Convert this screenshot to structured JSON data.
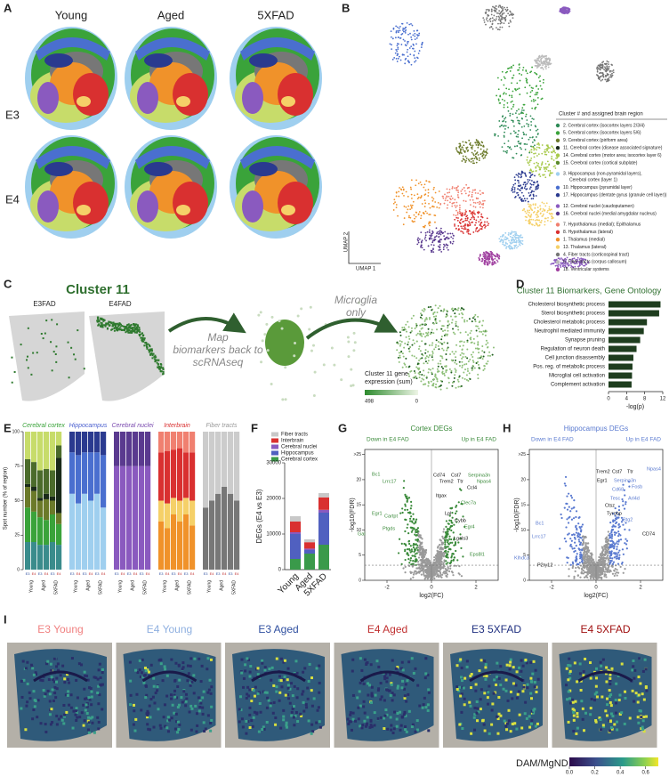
{
  "panel_a": {
    "label": "A",
    "columns": [
      "Young",
      "Aged",
      "5XFAD"
    ],
    "rows": [
      "E3",
      "E4"
    ]
  },
  "panel_b": {
    "label": "B",
    "legend_title": "Cluster # and assigned brain region",
    "x_axis": "UMAP 1",
    "y_axis": "UMAP 2",
    "clusters": [
      {
        "name": "2.  Cerebral cortex (isocortex layers 2/3/4)",
        "color": "#2e8b57"
      },
      {
        "name": "5.  Cerebral cortex (isocortex layers 5/6)",
        "color": "#3aa33a"
      },
      {
        "name": "9.  Cerebral cortex (piriform area)",
        "color": "#6b7a2a"
      },
      {
        "name": "11. Cerebral cortex (disease associated signature)",
        "color": "#1a2a1a"
      },
      {
        "name": "14. Cerebral cortex (motor area; isocortex layer 6)",
        "color": "#a7c94a"
      },
      {
        "name": "15. Cerebral cortex (cortical subplate)",
        "color": "#5c8a2e"
      },
      {
        "name": "3.  Hippocampus (non-pyramidal layers),",
        "color": "#9fcfef"
      },
      {
        "name": "10. Hippocampus (pyramidal layer)",
        "color": "#4a6fcf"
      },
      {
        "name": "17. Hippocampus (dentate gyrus (granule cell layer))",
        "color": "#2a3a8f"
      },
      {
        "name": "12. Cerebral nuclei (caudoputamen)",
        "color": "#8a5abf"
      },
      {
        "name": "16. Cerebral nuclei (medial amygdalar nucleus)",
        "color": "#5a3a8f"
      },
      {
        "name": "7.  Hypothalamus (medial); Epithalamus",
        "color": "#f08070"
      },
      {
        "name": "8.  Hypothalamus (lateral)",
        "color": "#d93030"
      },
      {
        "name": "1.  Thalamus (medial)",
        "color": "#f0922a"
      },
      {
        "name": "13. Thalamus (lateral)",
        "color": "#f5d068"
      },
      {
        "name": "4.  Fiber tracts (corticospinal tract)",
        "color": "#777777"
      },
      {
        "name": "6.  Fiber tracts (corpus callosum)",
        "color": "#bbbbbb"
      },
      {
        "name": "18. Ventricular systems",
        "color": "#a040a0"
      }
    ],
    "cluster_3_second_line": "Cerebral cortex (layer 1)"
  },
  "panel_c": {
    "label": "C",
    "title": "Cluster 11",
    "samples": [
      "E3FAD",
      "E4FAD"
    ],
    "arrow_text": [
      "Map",
      "biomarkers back to",
      "scRNAseq"
    ],
    "result_text": [
      "Microglia",
      "only"
    ],
    "colorbar_title": [
      "Cluster 11 gene",
      "expression (sum)"
    ],
    "colorbar_ticks": [
      498,
      0
    ]
  },
  "panel_d": {
    "label": "D",
    "type": "bar",
    "title": "Cluster 11 Biomarkers, Gene Ontology",
    "categories": [
      "Cholesterol biosynthetic process",
      "Sterol biosynthetic process",
      "Cholesterol metabolic process",
      "Neutrophil mediated immunity",
      "Synapse pruning",
      "Regulation of neuron death",
      "Cell junction disassembly",
      "Pos. reg. of metabolic process",
      "Microglial cell activation",
      "Complement activation"
    ],
    "values": [
      11.5,
      11.2,
      8.5,
      7.8,
      7.0,
      6.2,
      5.5,
      5.3,
      5.2,
      5.1
    ],
    "color": "#1e3d1e",
    "xlabel": "-log(p)",
    "xlim": [
      0,
      12
    ],
    "xticks": [
      0,
      4,
      8,
      12
    ]
  },
  "panel_e": {
    "label": "E",
    "type": "stacked_bar",
    "ylabel": "Spot number (% of region)",
    "ylim": [
      0,
      100
    ],
    "yticks": [
      0,
      25,
      50,
      75,
      100
    ],
    "conditions": [
      "Young",
      "Aged",
      "5XFAD"
    ],
    "genotypes": [
      "E3",
      "E4"
    ],
    "groups": [
      {
        "name": "Cerebral cortex",
        "color": "#3aa33a",
        "series": [
          {
            "color": "#3a8c8c",
            "values": [
              20,
              20,
              18,
              18,
              20,
              18
            ]
          },
          {
            "color": "#3aa33a",
            "values": [
              25,
              22,
              20,
              18,
              20,
              15
            ]
          },
          {
            "color": "#6b7a2a",
            "values": [
              15,
              15,
              12,
              15,
              10,
              8
            ]
          },
          {
            "color": "#1a2a1a",
            "values": [
              2,
              3,
              2,
              4,
              3,
              40
            ]
          },
          {
            "color": "#4b6b2b",
            "values": [
              18,
              18,
              20,
              18,
              19,
              9
            ]
          },
          {
            "color": "#c7dc6a",
            "values": [
              20,
              22,
              28,
              27,
              28,
              10
            ]
          }
        ]
      },
      {
        "name": "Hippocampus",
        "color": "#4a5fcf",
        "series": [
          {
            "color": "#9fcfef",
            "values": [
              55,
              48,
              55,
              50,
              55,
              45
            ]
          },
          {
            "color": "#4a6fcf",
            "values": [
              30,
              35,
              30,
              35,
              30,
              38
            ]
          },
          {
            "color": "#2a3a8f",
            "values": [
              15,
              17,
              15,
              15,
              15,
              17
            ]
          }
        ]
      },
      {
        "name": "Cerebral nuclei",
        "color": "#7a4aaf",
        "series": [
          {
            "color": "#8a5abf",
            "values": [
              75,
              75,
              75,
              75,
              75,
              75
            ]
          },
          {
            "color": "#5a3a8f",
            "values": [
              25,
              25,
              25,
              25,
              25,
              25
            ]
          }
        ]
      },
      {
        "name": "Interbrain",
        "color": "#d93030",
        "series": [
          {
            "color": "#f0922a",
            "values": [
              35,
              30,
              40,
              35,
              40,
              32
            ]
          },
          {
            "color": "#f5d068",
            "values": [
              15,
              18,
              12,
              15,
              12,
              18
            ]
          },
          {
            "color": "#d93030",
            "values": [
              35,
              38,
              35,
              38,
              33,
              35
            ]
          },
          {
            "color": "#f08070",
            "values": [
              15,
              14,
              13,
              12,
              15,
              15
            ]
          }
        ]
      },
      {
        "name": "Fiber tracts",
        "color": "#999999",
        "series": [
          {
            "color": "#777777",
            "values": [
              45,
              50,
              55,
              60,
              55,
              50
            ]
          },
          {
            "color": "#cccccc",
            "values": [
              55,
              50,
              45,
              40,
              45,
              50
            ]
          }
        ]
      }
    ]
  },
  "panel_f": {
    "label": "F",
    "type": "stacked_bar",
    "ylabel": "DEGs (E4 vs E3)",
    "categories": [
      "Young",
      "Aged",
      "5XFAD"
    ],
    "ylim": [
      0,
      30000
    ],
    "yticks": [
      0,
      10000,
      20000,
      30000
    ],
    "series": [
      {
        "name": "Cerebral cortex",
        "color": "#3a9a4a",
        "values": [
          3000,
          4500,
          7000
        ]
      },
      {
        "name": "Hippocampus",
        "color": "#5060c0",
        "values": [
          7000,
          1000,
          9000
        ]
      },
      {
        "name": "Cerebral nuclei",
        "color": "#8a5abf",
        "values": [
          500,
          400,
          800
        ]
      },
      {
        "name": "Interbrain",
        "color": "#d93030",
        "values": [
          3000,
          1800,
          3500
        ]
      },
      {
        "name": "Fiber tracts",
        "color": "#c8c8c8",
        "values": [
          1500,
          800,
          1200
        ]
      }
    ]
  },
  "panel_g": {
    "label": "G",
    "title": "Cortex DEGs",
    "down_label": "Down in E4 FAD",
    "up_label": "Up in E4 FAD",
    "xlabel": "log2(FC)",
    "ylabel": "-log10(FDR)",
    "xlim": [
      -3,
      3
    ],
    "ylim": [
      0,
      26
    ],
    "xticks": [
      -2,
      0,
      2
    ],
    "yticks": [
      0,
      5,
      10,
      15,
      20,
      {
        "value": 25,
        "label": ">25"
      }
    ],
    "genes": [
      "Bc1",
      "Lrrc17",
      "Cd74",
      "Cst7",
      "Serpina3n",
      "Trem2",
      "Ttr",
      "Npas4",
      "Ccl4",
      "Itgax",
      "Clec7a",
      "Lpl",
      "Cybb",
      "Egr4",
      "Lgals3",
      "Egr1",
      "Cartpt",
      "Ptgds",
      "Gal",
      "Eps8l1"
    ]
  },
  "panel_h": {
    "label": "H",
    "title": "Hippocampus DEGs",
    "down_label": "Down in E4 FAD",
    "up_label": "Up in E4 FAD",
    "xlabel": "log2(FC)",
    "ylabel": "-log10(FDR)",
    "xlim": [
      -3,
      3
    ],
    "ylim": [
      0,
      26
    ],
    "xticks": [
      -2,
      0,
      2
    ],
    "yticks": [
      0,
      5,
      10,
      15,
      20,
      {
        "value": 25,
        "label": ">25"
      }
    ],
    "genes": [
      "Trem2",
      "Cst7",
      "Ttr",
      "Npas4",
      "Egr1",
      "Serpina3n",
      "Fosb",
      "Cd68",
      "Tesc",
      "Arl4d",
      "Ctsz",
      "Tyrobp",
      "Btg2",
      "CD74",
      "Bc1",
      "Lrrc17",
      "Klhdc3",
      "P2ry12"
    ]
  },
  "panel_i": {
    "label": "I",
    "samples": [
      "E3 Young",
      "E4 Young",
      "E3 Aged",
      "E4 Aged",
      "E3 5XFAD",
      "E4 5XFAD"
    ],
    "colorbar_title": "DAM/MgND score",
    "colorbar_lim": [
      0,
      0.7
    ],
    "colorbar_ticks": [
      {
        "value": 0,
        "label": "0.0"
      },
      0.2,
      0.4,
      0.6
    ]
  }
}
